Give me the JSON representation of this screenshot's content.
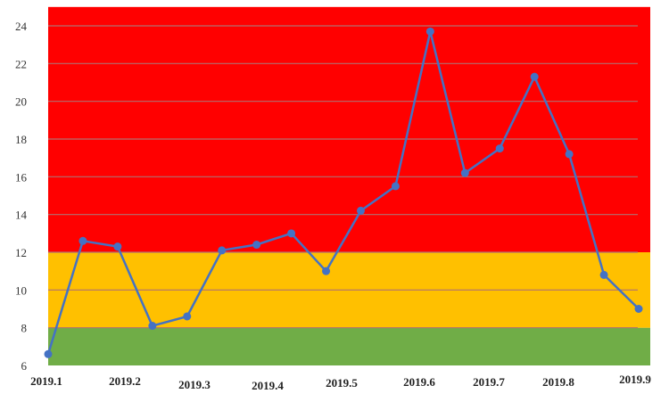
{
  "chart_data": {
    "type": "line",
    "title": "",
    "xlabel": "",
    "ylabel": "",
    "ylim": [
      6,
      25
    ],
    "yticks": [
      6,
      8,
      10,
      12,
      14,
      16,
      18,
      20,
      22,
      24
    ],
    "grid": true,
    "legend": "none",
    "x_tick_labels": [
      "2019.1",
      "2019.2",
      "2019.3",
      "2019.4",
      "2019.5",
      "2019.6",
      "2019.7",
      "2019.8",
      "2019.9"
    ],
    "series": [
      {
        "color": "#4472c4",
        "values": [
          6.6,
          12.6,
          12.3,
          8.1,
          8.6,
          12.1,
          12.4,
          13.0,
          11.0,
          14.2,
          15.5,
          23.7,
          16.2,
          17.5,
          21.3,
          17.2,
          10.8,
          9.0
        ]
      }
    ],
    "bands": [
      {
        "from": 6,
        "to": 8,
        "color": "#70ad47"
      },
      {
        "from": 8,
        "to": 12,
        "color": "#ffc000"
      },
      {
        "from": 12,
        "to": 25,
        "color": "#ff0000"
      }
    ],
    "gridline_color": "#b07070"
  }
}
